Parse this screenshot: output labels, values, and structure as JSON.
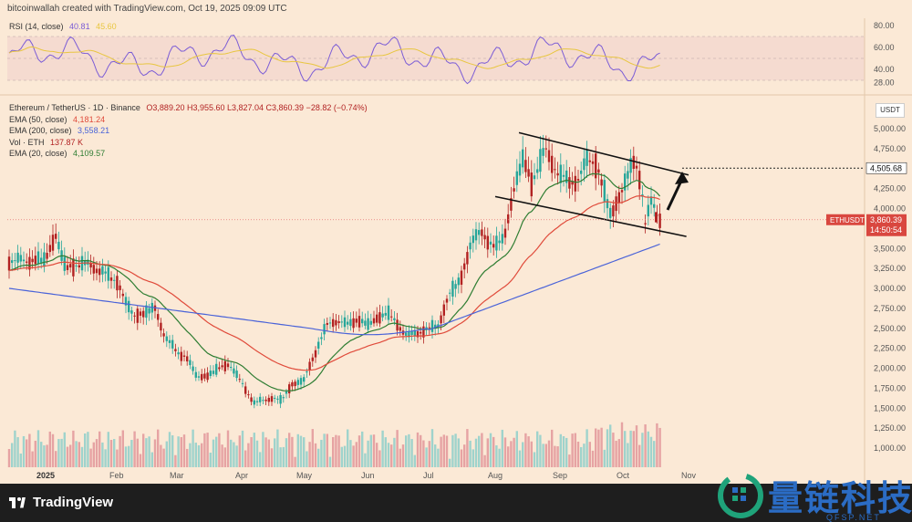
{
  "header": {
    "attribution": "bitcoinwallah created with TradingView.com, Oct 19, 2025 09:09 UTC"
  },
  "rsi": {
    "label": "RSI (14, close)",
    "value": "40.81",
    "ma_value": "45.60",
    "ticks": [
      "80.00",
      "60.00",
      "40.00",
      "28.00"
    ]
  },
  "price_legend": {
    "title": "Ethereum / TetherUS · 1D · Binance",
    "ohlc": "O3,889.20 H3,955.60 L3,827.04 C3,860.39 −28.82 (−0.74%)",
    "ema50_label": "EMA (50, close)",
    "ema50_value": "4,181.24",
    "ema200_label": "EMA (200, close)",
    "ema200_value": "3,558.21",
    "vol_label": "Vol · ETH",
    "vol_value": "137.87 K",
    "ema20_label": "EMA (20, close)",
    "ema20_value": "4,109.57"
  },
  "axis": {
    "currency": "USDT",
    "price_ticks": [
      "5,000.00",
      "4,750.00",
      "4,250.00",
      "4,000.00",
      "3,750.00",
      "3,500.00",
      "3,250.00",
      "3,000.00",
      "2,750.00",
      "2,500.00",
      "2,250.00",
      "2,000.00",
      "1,750.00",
      "1,500.00",
      "1,250.00",
      "1,000.00"
    ],
    "target_label": "4,505.68",
    "current_label": "3,860.39",
    "countdown": "14:50:54",
    "symbol_tag": "ETHUSDT",
    "months": [
      "2025",
      "Feb",
      "Mar",
      "Apr",
      "May",
      "Jun",
      "Jul",
      "Aug",
      "Sep",
      "Oct",
      "Nov"
    ]
  },
  "colors": {
    "ema50": "#e04b3b",
    "ema200": "#4a63d8",
    "ema20": "#2e7d32",
    "rsi": "#7b5cd6",
    "up": "#26a69a",
    "down": "#b22222"
  },
  "branding": {
    "logo_text": "TradingView",
    "watermark": "量链科技",
    "watermark_sub": "QFSP.NET"
  },
  "chart_data": {
    "type": "candlestick",
    "title": "Ethereum / TetherUS · 1D · Binance",
    "y_axis": {
      "currency": "USDT",
      "range": [
        900,
        5250
      ]
    },
    "x_months": [
      "2025",
      "Feb",
      "Mar",
      "Apr",
      "May",
      "Jun",
      "Jul",
      "Aug",
      "Sep",
      "Oct",
      "Nov"
    ],
    "close_path": [
      [
        "Jan 01",
        3350
      ],
      [
        "Jan 06",
        3650
      ],
      [
        "Jan 10",
        3250
      ],
      [
        "Jan 15",
        3300
      ],
      [
        "Jan 20",
        3300
      ],
      [
        "Jan 25",
        3200
      ],
      [
        "Feb 01",
        3100
      ],
      [
        "Feb 05",
        2850
      ],
      [
        "Feb 10",
        2650
      ],
      [
        "Feb 15",
        2700
      ],
      [
        "Feb 20",
        2750
      ],
      [
        "Feb 25",
        2400
      ],
      [
        "Mar 01",
        2200
      ],
      [
        "Mar 05",
        2150
      ],
      [
        "Mar 10",
        1900
      ],
      [
        "Mar 15",
        1900
      ],
      [
        "Mar 20",
        2000
      ],
      [
        "Mar 25",
        2050
      ],
      [
        "Apr 01",
        1800
      ],
      [
        "Apr 07",
        1550
      ],
      [
        "Apr 10",
        1600
      ],
      [
        "Apr 15",
        1620
      ],
      [
        "Apr 20",
        1600
      ],
      [
        "Apr 25",
        1790
      ],
      [
        "May 01",
        1850
      ],
      [
        "May 08",
        2300
      ],
      [
        "May 12",
        2550
      ],
      [
        "May 15",
        2600
      ],
      [
        "May 20",
        2550
      ],
      [
        "May 25",
        2600
      ],
      [
        "Jun 01",
        2550
      ],
      [
        "Jun 10",
        2700
      ],
      [
        "Jun 15",
        2550
      ],
      [
        "Jun 20",
        2400
      ],
      [
        "Jun 25",
        2450
      ],
      [
        "Jul 01",
        2500
      ],
      [
        "Jul 05",
        2550
      ],
      [
        "Jul 10",
        2950
      ],
      [
        "Jul 15",
        3100
      ],
      [
        "Jul 20",
        3600
      ],
      [
        "Jul 25",
        3700
      ],
      [
        "Aug 01",
        3500
      ],
      [
        "Aug 05",
        3650
      ],
      [
        "Aug 10",
        4250
      ],
      [
        "Aug 14",
        4650
      ],
      [
        "Aug 18",
        4300
      ],
      [
        "Aug 24",
        4750
      ],
      [
        "Sep 01",
        4400
      ],
      [
        "Sep 05",
        4350
      ],
      [
        "Sep 10",
        4350
      ],
      [
        "Sep 14",
        4650
      ],
      [
        "Sep 18",
        4550
      ],
      [
        "Sep 22",
        4200
      ],
      [
        "Sep 25",
        3900
      ],
      [
        "Oct 01",
        4300
      ],
      [
        "Oct 06",
        4600
      ],
      [
        "Oct 09",
        4350
      ],
      [
        "Oct 11",
        3800
      ],
      [
        "Oct 14",
        4100
      ],
      [
        "Oct 17",
        3900
      ],
      [
        "Oct 19",
        3860.39
      ]
    ],
    "ohlc_last": {
      "open": 3889.2,
      "high": 3955.6,
      "low": 3827.04,
      "close": 3860.39,
      "change": -28.82,
      "change_pct": -0.74
    },
    "indicators": {
      "ema20": 4109.57,
      "ema50": 4181.24,
      "ema200": 3558.21,
      "volume_eth": "137.87K",
      "rsi14": 40.81
    },
    "channel": {
      "upper": [
        [
          "Aug 12",
          4950
        ],
        [
          "Nov 01",
          4420
        ]
      ],
      "lower": [
        [
          "Aug 01",
          4150
        ],
        [
          "Oct 30",
          3650
        ]
      ]
    },
    "target": 4505.68
  }
}
